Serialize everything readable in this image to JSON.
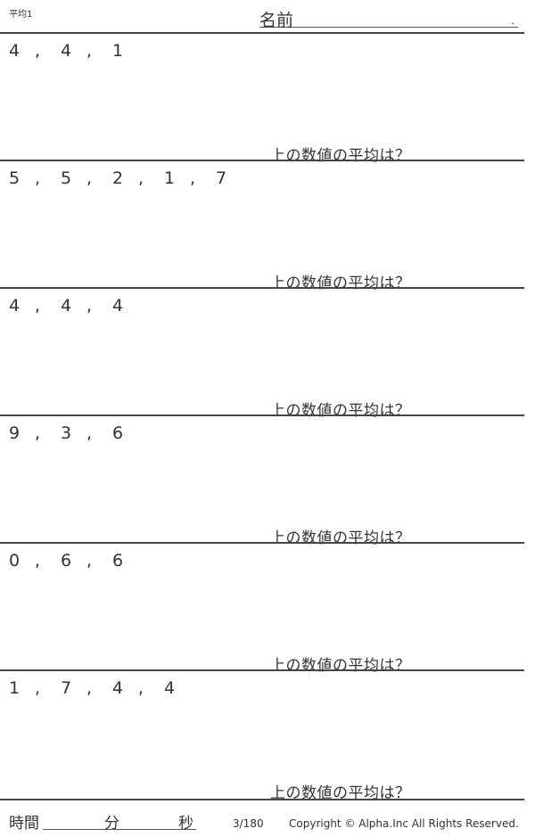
{
  "header": {
    "title": "平均1",
    "name_label": "名前",
    "name_end": "."
  },
  "problems": [
    {
      "numbers": [
        "4",
        "4",
        "1"
      ]
    },
    {
      "numbers": [
        "5",
        "5",
        "2",
        "1",
        "7"
      ]
    },
    {
      "numbers": [
        "4",
        "4",
        "4"
      ]
    },
    {
      "numbers": [
        "9",
        "3",
        "6"
      ]
    },
    {
      "numbers": [
        "0",
        "6",
        "6"
      ]
    },
    {
      "numbers": [
        "1",
        "7",
        "4",
        "4"
      ]
    }
  ],
  "question": "上の数値の平均は？",
  "footer": {
    "time_label": "時間",
    "minutes_label": "分",
    "seconds_label": "秒",
    "page": "3/180",
    "copyright": "Copyright ©  Alpha.Inc All Rights Reserved."
  }
}
